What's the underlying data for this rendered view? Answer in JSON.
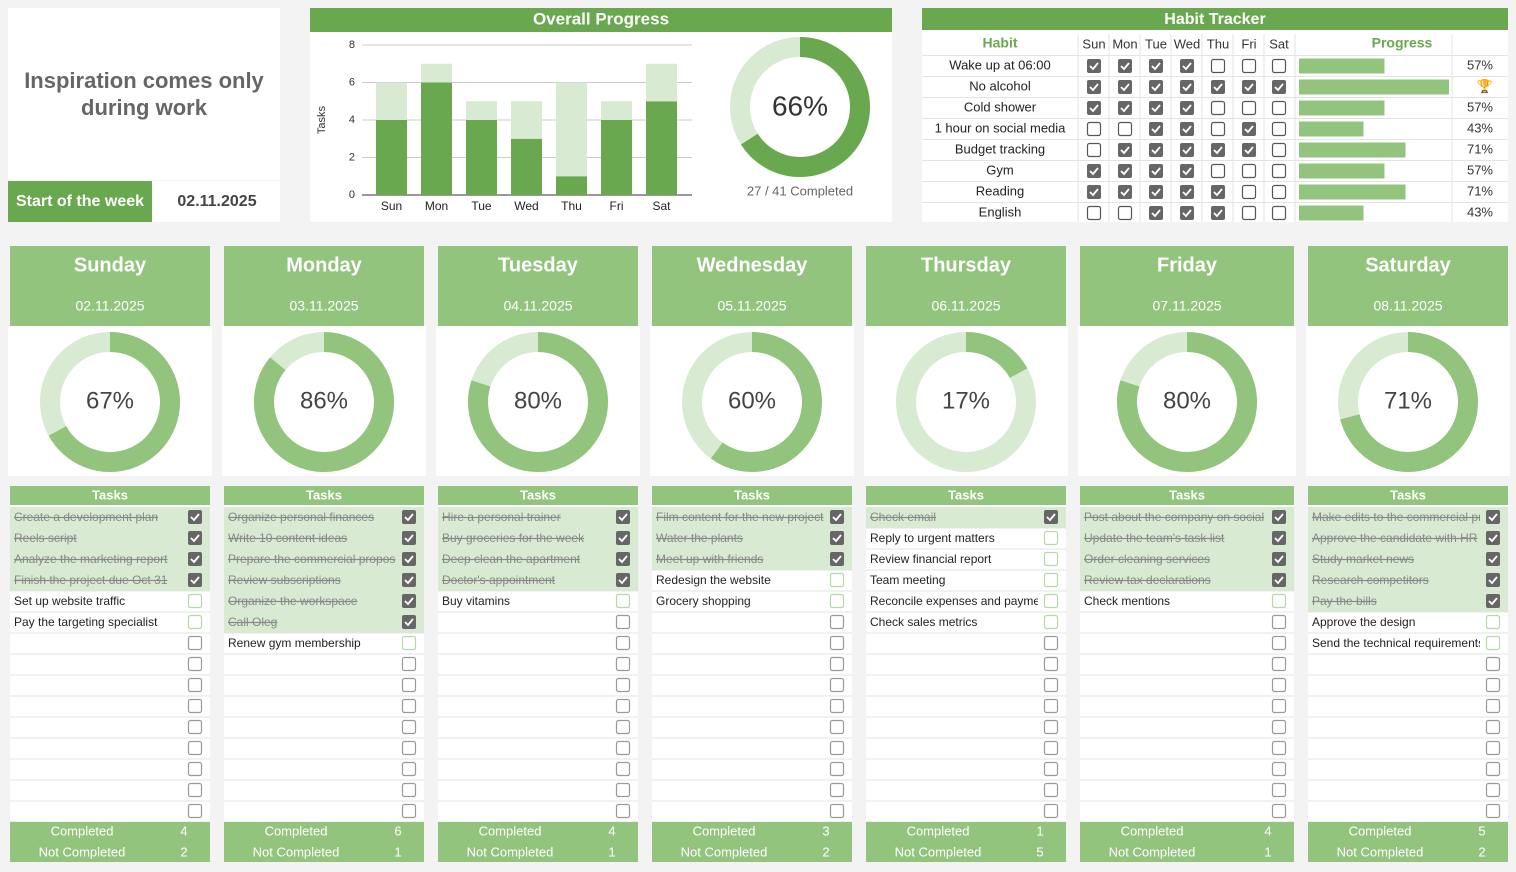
{
  "quote": "Inspiration comes only during work",
  "week_start": {
    "label": "Start of the week",
    "date": "02.11.2025"
  },
  "chart_data": [
    {
      "type": "bar",
      "title": "Overall Progress",
      "y_label": "Tasks",
      "stacked": true,
      "categories": [
        "Sun",
        "Mon",
        "Tue",
        "Wed",
        "Thu",
        "Fri",
        "Sat"
      ],
      "series": [
        {
          "color": "#6aa84f",
          "values": [
            4,
            6,
            4,
            3,
            1,
            4,
            5
          ]
        },
        {
          "color": "#d9ead3",
          "values": [
            2,
            1,
            1,
            2,
            5,
            1,
            2
          ]
        }
      ],
      "ylim": [
        0,
        8
      ],
      "yticks": [
        0,
        2,
        4,
        6,
        8
      ],
      "grid": true
    },
    {
      "type": "donut",
      "value": 66,
      "value_label": "66%",
      "caption": "27 / 41 Completed",
      "colors": [
        "#6aa84f",
        "#d9ead3"
      ]
    }
  ],
  "habits": {
    "title": "Habit Tracker",
    "habit_header": "Habit",
    "progress_header": "Progress",
    "days": [
      "Sun",
      "Mon",
      "Tue",
      "Wed",
      "Thu",
      "Fri",
      "Sat"
    ],
    "color": "#93c47d",
    "rows": [
      {
        "name": "Wake up at 06:00",
        "checks": [
          true,
          true,
          true,
          true,
          false,
          false,
          false
        ],
        "progress": 57,
        "progress_label": "57%"
      },
      {
        "name": "No alcohol",
        "checks": [
          true,
          true,
          true,
          true,
          true,
          true,
          true
        ],
        "progress": 100,
        "progress_label": "🏆"
      },
      {
        "name": "Cold shower",
        "checks": [
          true,
          true,
          true,
          true,
          false,
          false,
          false
        ],
        "progress": 57,
        "progress_label": "57%"
      },
      {
        "name": "1 hour on social media",
        "checks": [
          false,
          false,
          true,
          true,
          false,
          true,
          false
        ],
        "progress": 43,
        "progress_label": "43%"
      },
      {
        "name": "Budget tracking",
        "checks": [
          false,
          true,
          true,
          true,
          true,
          true,
          false
        ],
        "progress": 71,
        "progress_label": "71%"
      },
      {
        "name": "Gym",
        "checks": [
          true,
          true,
          true,
          true,
          false,
          false,
          false
        ],
        "progress": 57,
        "progress_label": "57%"
      },
      {
        "name": "Reading",
        "checks": [
          true,
          true,
          true,
          true,
          true,
          false,
          false
        ],
        "progress": 71,
        "progress_label": "71%"
      },
      {
        "name": "English",
        "checks": [
          false,
          false,
          true,
          true,
          true,
          false,
          false
        ],
        "progress": 43,
        "progress_label": "43%"
      }
    ]
  },
  "days": [
    {
      "name": "Sunday",
      "date": "02.11.2025",
      "percent": 67,
      "percent_label": "67%",
      "tasks_title": "Tasks",
      "tasks": [
        "Create a development plan",
        "Reels script",
        "Analyze the marketing report",
        "Finish the project due Oct 31",
        "Set up website traffic",
        "Pay the targeting specialist",
        null,
        null,
        null,
        null,
        null,
        null,
        null,
        null,
        null
      ],
      "done": [
        true,
        true,
        true,
        true,
        false,
        false,
        false,
        false,
        false,
        false,
        false,
        false,
        false,
        false,
        false
      ],
      "completed_label": "Completed",
      "completed": 4,
      "not_completed_label": "Not Completed",
      "not_completed": 2
    },
    {
      "name": "Monday",
      "date": "03.11.2025",
      "percent": 86,
      "percent_label": "86%",
      "tasks_title": "Tasks",
      "tasks": [
        "Organize personal finances",
        "Write 10 content ideas",
        "Prepare the commercial propos",
        "Review subscriptions",
        "Organize the workspace",
        "Call Oleg",
        "Renew gym membership",
        null,
        null,
        null,
        null,
        null,
        null,
        null,
        null
      ],
      "done": [
        true,
        true,
        true,
        true,
        true,
        true,
        false,
        false,
        false,
        false,
        false,
        false,
        false,
        false,
        false
      ],
      "completed_label": "Completed",
      "completed": 6,
      "not_completed_label": "Not Completed",
      "not_completed": 1
    },
    {
      "name": "Tuesday",
      "date": "04.11.2025",
      "percent": 80,
      "percent_label": "80%",
      "tasks_title": "Tasks",
      "tasks": [
        "Hire a personal trainer",
        "Buy groceries for the week",
        "Deep clean the apartment",
        "Doctor's appointment",
        "Buy vitamins",
        null,
        null,
        null,
        null,
        null,
        null,
        null,
        null,
        null,
        null
      ],
      "done": [
        true,
        true,
        true,
        true,
        false,
        false,
        false,
        false,
        false,
        false,
        false,
        false,
        false,
        false,
        false
      ],
      "completed_label": "Completed",
      "completed": 4,
      "not_completed_label": "Not Completed",
      "not_completed": 1
    },
    {
      "name": "Wednesday",
      "date": "05.11.2025",
      "percent": 60,
      "percent_label": "60%",
      "tasks_title": "Tasks",
      "tasks": [
        "Film content for the new project",
        "Water the plants",
        "Meet up with friends",
        "Redesign the website",
        "Grocery shopping",
        null,
        null,
        null,
        null,
        null,
        null,
        null,
        null,
        null,
        null
      ],
      "done": [
        true,
        true,
        true,
        false,
        false,
        false,
        false,
        false,
        false,
        false,
        false,
        false,
        false,
        false,
        false
      ],
      "completed_label": "Completed",
      "completed": 3,
      "not_completed_label": "Not Completed",
      "not_completed": 2
    },
    {
      "name": "Thursday",
      "date": "06.11.2025",
      "percent": 17,
      "percent_label": "17%",
      "tasks_title": "Tasks",
      "tasks": [
        "Check email",
        "Reply to urgent matters",
        "Review financial report",
        "Team meeting",
        "Reconcile expenses and payme",
        "Check sales metrics",
        null,
        null,
        null,
        null,
        null,
        null,
        null,
        null,
        null
      ],
      "done": [
        true,
        false,
        false,
        false,
        false,
        false,
        false,
        false,
        false,
        false,
        false,
        false,
        false,
        false,
        false
      ],
      "completed_label": "Completed",
      "completed": 1,
      "not_completed_label": "Not Completed",
      "not_completed": 5
    },
    {
      "name": "Friday",
      "date": "07.11.2025",
      "percent": 80,
      "percent_label": "80%",
      "tasks_title": "Tasks",
      "tasks": [
        "Post about the company on social",
        "Update the team's task list",
        "Order cleaning services",
        "Review tax declarations",
        "Check mentions",
        null,
        null,
        null,
        null,
        null,
        null,
        null,
        null,
        null,
        null
      ],
      "done": [
        true,
        true,
        true,
        true,
        false,
        false,
        false,
        false,
        false,
        false,
        false,
        false,
        false,
        false,
        false
      ],
      "completed_label": "Completed",
      "completed": 4,
      "not_completed_label": "Not Completed",
      "not_completed": 1
    },
    {
      "name": "Saturday",
      "date": "08.11.2025",
      "percent": 71,
      "percent_label": "71%",
      "tasks_title": "Tasks",
      "tasks": [
        "Make edits to the commercial pr",
        "Approve the candidate with HR",
        "Study market news",
        "Research competitors",
        "Pay the bills",
        "Approve the design",
        "Send the technical requirements",
        null,
        null,
        null,
        null,
        null,
        null,
        null,
        null
      ],
      "done": [
        true,
        true,
        true,
        true,
        true,
        false,
        false,
        false,
        false,
        false,
        false,
        false,
        false,
        false,
        false
      ],
      "completed_label": "Completed",
      "completed": 5,
      "not_completed_label": "Not Completed",
      "not_completed": 2
    }
  ]
}
